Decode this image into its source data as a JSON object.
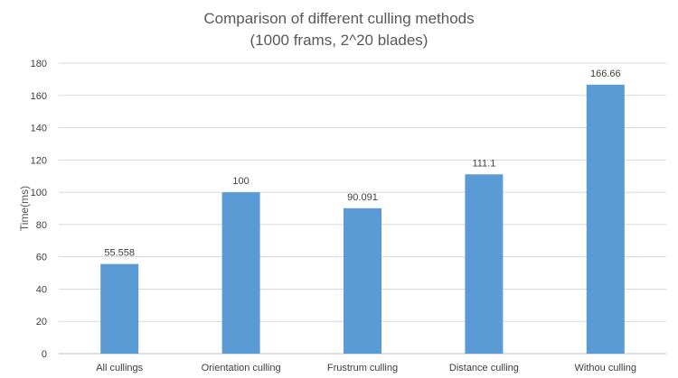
{
  "chart_data": {
    "type": "bar",
    "title_lines": [
      "Comparison of different culling methods",
      "(1000 frams, 2^20 blades)"
    ],
    "xlabel": "",
    "ylabel": "Time(ms)",
    "categories": [
      "All cullings",
      "Orientation culling",
      "Frustrum culling",
      "Distance culling",
      "Withou culling"
    ],
    "values": [
      55.558,
      100,
      90.091,
      111.1,
      166.66
    ],
    "data_labels": [
      "55.558",
      "100",
      "90.091",
      "111.1",
      "166.66"
    ],
    "ylim": [
      0,
      180
    ],
    "yticks": [
      0,
      20,
      40,
      60,
      80,
      100,
      120,
      140,
      160,
      180
    ],
    "grid": true,
    "legend": "none",
    "bar_color": "#5b9bd5"
  }
}
